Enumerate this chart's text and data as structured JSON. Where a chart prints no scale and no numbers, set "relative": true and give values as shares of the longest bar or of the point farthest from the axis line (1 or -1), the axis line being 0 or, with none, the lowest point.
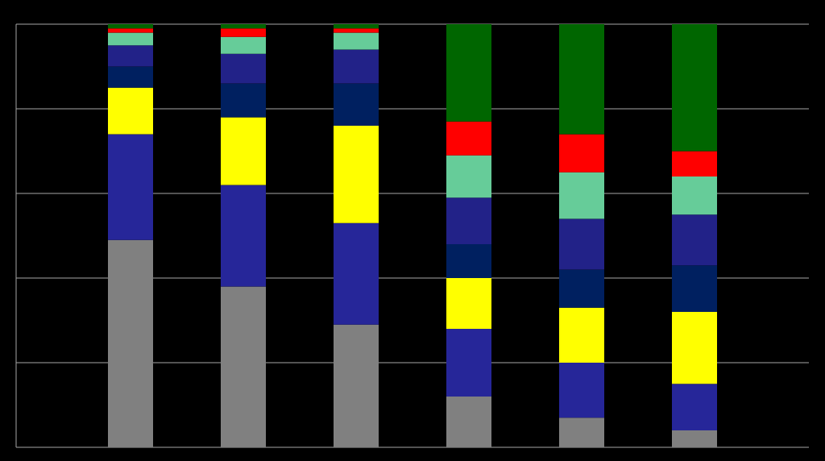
{
  "chart_data": {
    "type": "bar",
    "stacked": true,
    "relative": true,
    "grid": true,
    "categories": [
      null,
      null,
      null,
      null,
      null,
      null
    ],
    "series": [
      {
        "color": "#808080",
        "values": [
          0.49,
          0.38,
          0.29,
          0.12,
          0.07,
          0.04
        ]
      },
      {
        "color": "#262699",
        "values": [
          0.25,
          0.24,
          0.24,
          0.16,
          0.13,
          0.11
        ]
      },
      {
        "color": "#ffff00",
        "values": [
          0.11,
          0.16,
          0.23,
          0.12,
          0.13,
          0.17
        ]
      },
      {
        "color": "#002060",
        "values": [
          0.05,
          0.08,
          0.1,
          0.08,
          0.09,
          0.11
        ]
      },
      {
        "color": "#222288",
        "values": [
          0.05,
          0.07,
          0.08,
          0.11,
          0.12,
          0.12
        ]
      },
      {
        "color": "#66cc99",
        "values": [
          0.03,
          0.04,
          0.04,
          0.1,
          0.11,
          0.09
        ]
      },
      {
        "color": "#ff0000",
        "values": [
          0.01,
          0.02,
          0.01,
          0.08,
          0.09,
          0.06
        ]
      },
      {
        "color": "#006600",
        "values": [
          0.01,
          0.01,
          0.01,
          0.23,
          0.26,
          0.3
        ]
      }
    ]
  }
}
